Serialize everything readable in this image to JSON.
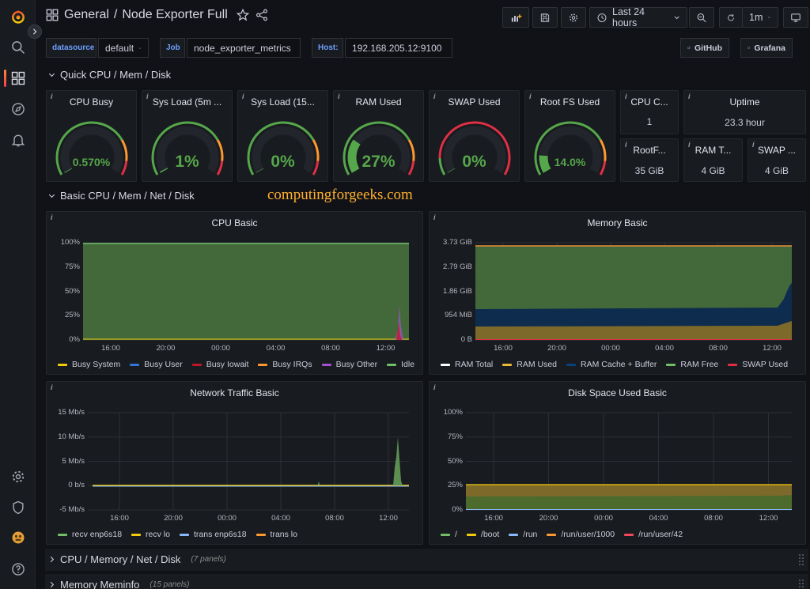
{
  "header": {
    "folder": "General",
    "separator": "/",
    "dashboard": "Node Exporter Full",
    "time_range": "Last 24 hours",
    "refresh": "1m"
  },
  "variables": [
    {
      "label": "datasource",
      "value": "default"
    },
    {
      "label": "Job",
      "value": "node_exporter_metrics"
    },
    {
      "label": "Host:",
      "value": "192.168.205.12:9100"
    }
  ],
  "links": [
    {
      "label": "GitHub"
    },
    {
      "label": "Grafana"
    }
  ],
  "rows": [
    {
      "title": "Quick CPU / Mem / Disk",
      "count": ""
    },
    {
      "title": "Basic CPU / Mem / Net / Disk",
      "count": ""
    },
    {
      "title": "CPU / Memory / Net / Disk",
      "count": "(7 panels)"
    },
    {
      "title": "Memory Meminfo",
      "count": "(15 panels)"
    }
  ],
  "watermark": "computingforgeeks.com",
  "info_mark": "i",
  "gauges": [
    {
      "title": "CPU Busy",
      "value": "0.570%",
      "percent": 0.57,
      "threshold_style": "three"
    },
    {
      "title": "Sys Load (5m ...",
      "value": "1%",
      "percent": 1,
      "threshold_style": "three"
    },
    {
      "title": "Sys Load (15...",
      "value": "0%",
      "percent": 0,
      "threshold_style": "three"
    },
    {
      "title": "RAM Used",
      "value": "27%",
      "percent": 27,
      "threshold_style": "three"
    },
    {
      "title": "SWAP Used",
      "value": "0%",
      "percent": 0,
      "threshold_style": "swap"
    },
    {
      "title": "Root FS Used",
      "value": "14.0%",
      "percent": 14,
      "threshold_style": "three"
    }
  ],
  "stats": [
    {
      "title": "CPU C...",
      "value": "1"
    },
    {
      "title": "Uptime",
      "value": "23.3 hour"
    },
    {
      "title": "RootF...",
      "value": "35 GiB"
    },
    {
      "title": "RAM T...",
      "value": "4 GiB"
    },
    {
      "title": "SWAP ...",
      "value": "4 GiB"
    }
  ],
  "colors": {
    "green": "#56a64b",
    "yellow": "#f2cc0c",
    "orange": "#ff9830",
    "red": "#e02f44",
    "blue": "#1f60c4",
    "accent": "#3274d9"
  },
  "graphs": {
    "cpu_basic": {
      "title": "CPU Basic",
      "y_ticks": [
        "100%",
        "75%",
        "50%",
        "25%",
        "0%"
      ],
      "x_ticks": [
        "16:00",
        "20:00",
        "00:00",
        "04:00",
        "08:00",
        "12:00"
      ],
      "legend": [
        {
          "name": "Busy System",
          "color": "#f2cc0c"
        },
        {
          "name": "Busy User",
          "color": "#3274d9"
        },
        {
          "name": "Busy Iowait",
          "color": "#c4162a"
        },
        {
          "name": "Busy IRQs",
          "color": "#ff9830"
        },
        {
          "name": "Busy Other",
          "color": "#a352cc"
        },
        {
          "name": "Idle",
          "color": "#73bf69"
        }
      ]
    },
    "memory_basic": {
      "title": "Memory Basic",
      "y_ticks": [
        "3.73 GiB",
        "2.79 GiB",
        "1.86 GiB",
        "954 MiB",
        "0 B"
      ],
      "x_ticks": [
        "16:00",
        "20:00",
        "00:00",
        "04:00",
        "08:00",
        "12:00"
      ],
      "legend": [
        {
          "name": "RAM Total",
          "color": "#ffffff"
        },
        {
          "name": "RAM Used",
          "color": "#eab839"
        },
        {
          "name": "RAM Cache + Buffer",
          "color": "#0a437c"
        },
        {
          "name": "RAM Free",
          "color": "#73bf69"
        },
        {
          "name": "SWAP Used",
          "color": "#e02f44"
        }
      ]
    },
    "network_basic": {
      "title": "Network Traffic Basic",
      "y_ticks": [
        "15 Mb/s",
        "10 Mb/s",
        "5 Mb/s",
        "0 b/s",
        "-5 Mb/s"
      ],
      "x_ticks": [
        "16:00",
        "20:00",
        "00:00",
        "04:00",
        "08:00",
        "12:00"
      ],
      "legend": [
        {
          "name": "recv enp6s18",
          "color": "#73bf69"
        },
        {
          "name": "recv lo",
          "color": "#f2cc0c"
        },
        {
          "name": "trans enp6s18",
          "color": "#8ab8ff"
        },
        {
          "name": "trans lo",
          "color": "#ff9830"
        }
      ]
    },
    "disk_basic": {
      "title": "Disk Space Used Basic",
      "y_ticks": [
        "100%",
        "75%",
        "50%",
        "25%",
        "0%"
      ],
      "x_ticks": [
        "16:00",
        "20:00",
        "00:00",
        "04:00",
        "08:00",
        "12:00"
      ],
      "legend": [
        {
          "name": "/",
          "color": "#73bf69"
        },
        {
          "name": "/boot",
          "color": "#f2cc0c"
        },
        {
          "name": "/run",
          "color": "#8ab8ff"
        },
        {
          "name": "/run/user/1000",
          "color": "#ff9830"
        },
        {
          "name": "/run/user/42",
          "color": "#f2495c"
        }
      ]
    }
  }
}
